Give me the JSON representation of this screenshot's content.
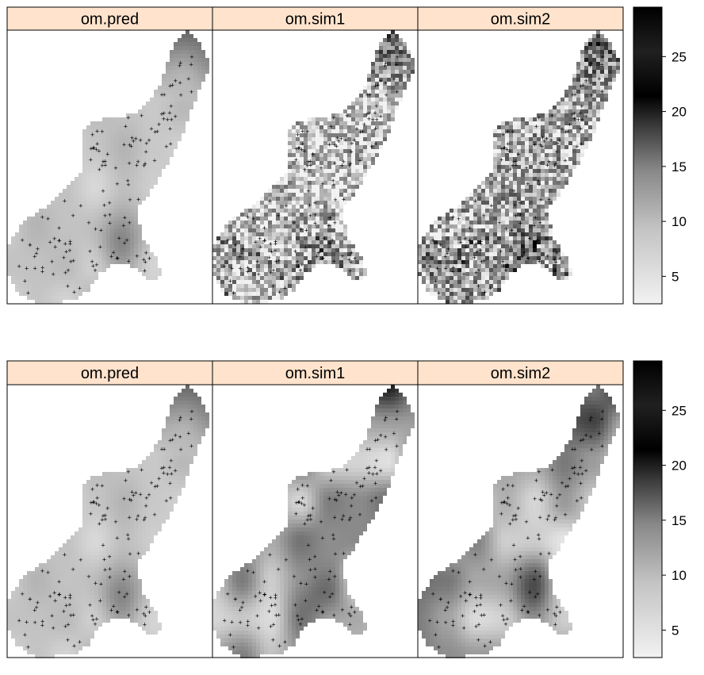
{
  "chart_data": [
    {
      "type": "heatmap",
      "panels": [
        "om.pred",
        "om.sim1",
        "om.sim2"
      ],
      "colorbar": {
        "range": [
          2.5,
          29.5
        ],
        "ticks": [
          5,
          10,
          15,
          20,
          25
        ]
      },
      "colors": {
        "low": "#f2f2f2",
        "high": "#000000",
        "strip": "#ffe3cc"
      },
      "texture": "noisy"
    },
    {
      "type": "heatmap",
      "panels": [
        "om.pred",
        "om.sim1",
        "om.sim2"
      ],
      "colorbar": {
        "range": [
          2.5,
          29.5
        ],
        "ticks": [
          5,
          10,
          15,
          20,
          25
        ]
      },
      "colors": {
        "low": "#f2f2f2",
        "high": "#000000",
        "strip": "#ffe3cc"
      },
      "texture": "smooth"
    }
  ]
}
